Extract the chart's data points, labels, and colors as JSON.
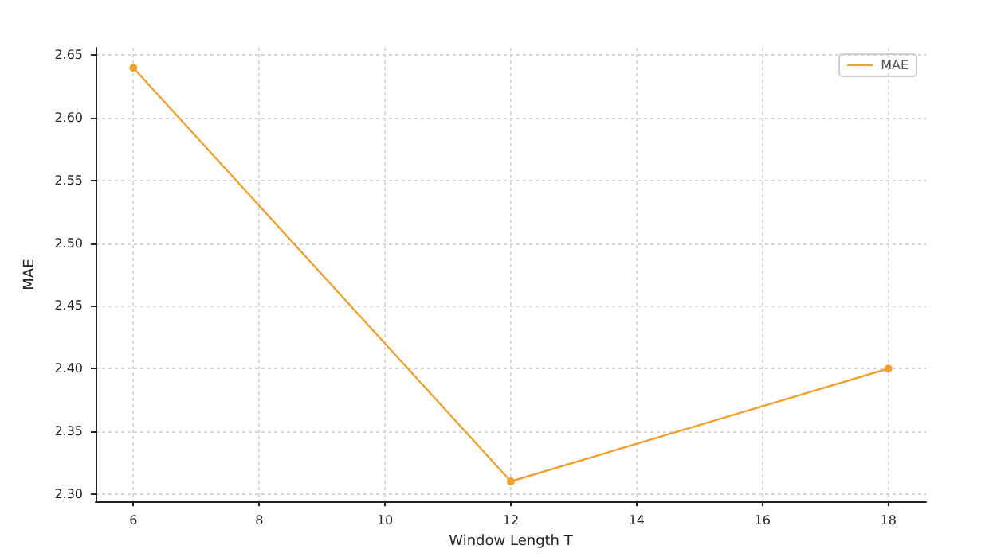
{
  "chart_data": {
    "type": "line",
    "xlabel": "Window Length T",
    "ylabel": "MAE",
    "x": [
      6,
      12,
      18
    ],
    "series": [
      {
        "name": "MAE",
        "color": "#f0a030",
        "values": [
          2.64,
          2.31,
          2.4
        ]
      }
    ],
    "xlim": [
      5.4,
      18.6
    ],
    "xticks": [
      6,
      8,
      10,
      12,
      14,
      16,
      18
    ],
    "ylim": [
      2.294,
      2.656
    ],
    "yticks": [
      {
        "value": 2.3,
        "label": "2.30"
      },
      2.35,
      {
        "value": 2.4,
        "label": "2.40"
      },
      2.45,
      {
        "value": 2.5,
        "label": "2.50"
      },
      2.55,
      {
        "value": 2.6,
        "label": "2.60"
      },
      2.65
    ],
    "grid": true,
    "legend": "top right",
    "marker": "circle",
    "line_style": "solid"
  }
}
